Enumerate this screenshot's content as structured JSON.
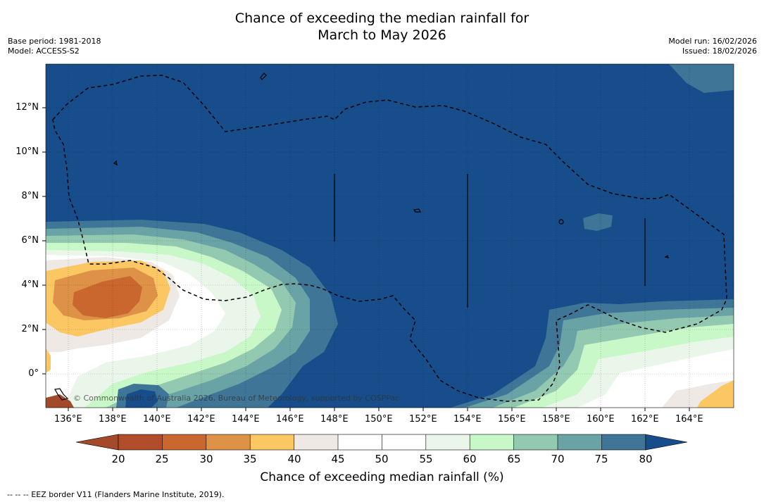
{
  "title": {
    "line1": "Chance of exceeding the median rainfall for",
    "line2": "March to May 2026"
  },
  "meta": {
    "base_period": "Base period: 1981-2018",
    "model": "Model: ACCESS-S2",
    "model_run": "Model run: 16/02/2026",
    "issued": "Issued: 18/02/2026"
  },
  "map": {
    "longitude_labels": [
      "136°E",
      "138°E",
      "140°E",
      "142°E",
      "144°E",
      "146°E",
      "148°E",
      "150°E",
      "152°E",
      "154°E",
      "156°E",
      "158°E",
      "160°E",
      "162°E",
      "164°E"
    ],
    "latitude_labels": [
      "12°N",
      "10°N",
      "8°N",
      "6°N",
      "4°N",
      "2°N",
      "0°"
    ],
    "copyright": "© Commonwealth of Australia 2026, Bureau of Meteorology, supported by COSPPac"
  },
  "colorbar": {
    "colors": [
      "#a34a2a",
      "#b24d2b",
      "#c9672f",
      "#de9248",
      "#fbc763",
      "#efe9e5",
      "#ffffff",
      "#ffffff",
      "#eaf6ea",
      "#c8f7c8",
      "#94c9b1",
      "#6aa3a6",
      "#3f7596",
      "#164d8a"
    ],
    "labels": [
      "20",
      "25",
      "30",
      "35",
      "40",
      "45",
      "50",
      "55",
      "60",
      "65",
      "70",
      "75",
      "80"
    ],
    "title": "Chance of exceeding median rainfall (%)"
  },
  "footer": "--  --  -- EEZ border V11 (Flanders Marine Institute, 2019)."
}
